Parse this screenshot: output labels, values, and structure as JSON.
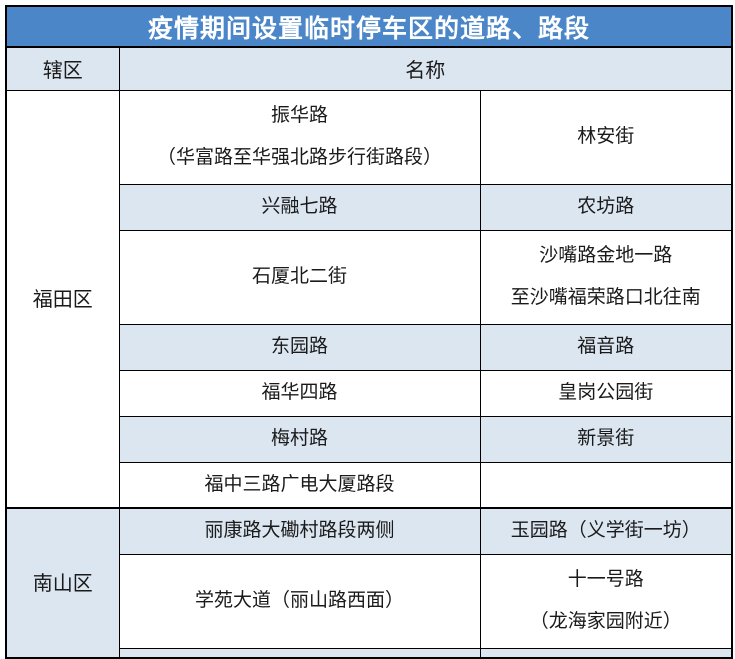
{
  "title": "疫情期间设置临时停车区的道路、路段",
  "column_headers": {
    "district": "辖区",
    "name": "名称"
  },
  "colors": {
    "banner_bg": "#4A86C8",
    "banner_text": "#FFFFFF",
    "shaded_row_bg": "#DCE6F1",
    "header_row_bg": "#DCE6F1",
    "body_text": "#1A1A1A",
    "border": "#000000"
  },
  "sections": [
    {
      "district": "福田区",
      "rows": [
        {
          "shaded": false,
          "left": [
            "振华路",
            "（华富路至华强北路步行街路段）"
          ],
          "right": [
            "林安街"
          ]
        },
        {
          "shaded": true,
          "left": [
            "兴融七路"
          ],
          "right": [
            "农坊路"
          ]
        },
        {
          "shaded": false,
          "left": [
            "石厦北二街"
          ],
          "right": [
            "沙嘴路金地一路",
            "至沙嘴福荣路口北往南"
          ]
        },
        {
          "shaded": true,
          "left": [
            "东园路"
          ],
          "right": [
            "福音路"
          ]
        },
        {
          "shaded": false,
          "left": [
            "福华四路"
          ],
          "right": [
            "皇岗公园街"
          ]
        },
        {
          "shaded": true,
          "left": [
            "梅村路"
          ],
          "right": [
            "新景街"
          ]
        },
        {
          "shaded": false,
          "left": [
            "福中三路广电大厦路段"
          ],
          "right": [
            ""
          ]
        }
      ]
    },
    {
      "district": "南山区",
      "rows": [
        {
          "shaded": true,
          "left": [
            "丽康路大磡村路段两侧"
          ],
          "right": [
            "玉园路（义学街一坊）"
          ]
        },
        {
          "shaded": false,
          "left": [
            "学苑大道（丽山路西面）"
          ],
          "right": [
            "十一号路",
            "（龙海家园附近）"
          ]
        },
        {
          "shaded": true,
          "partial": true,
          "left": [
            ""
          ],
          "right": [
            ""
          ]
        }
      ]
    }
  ]
}
